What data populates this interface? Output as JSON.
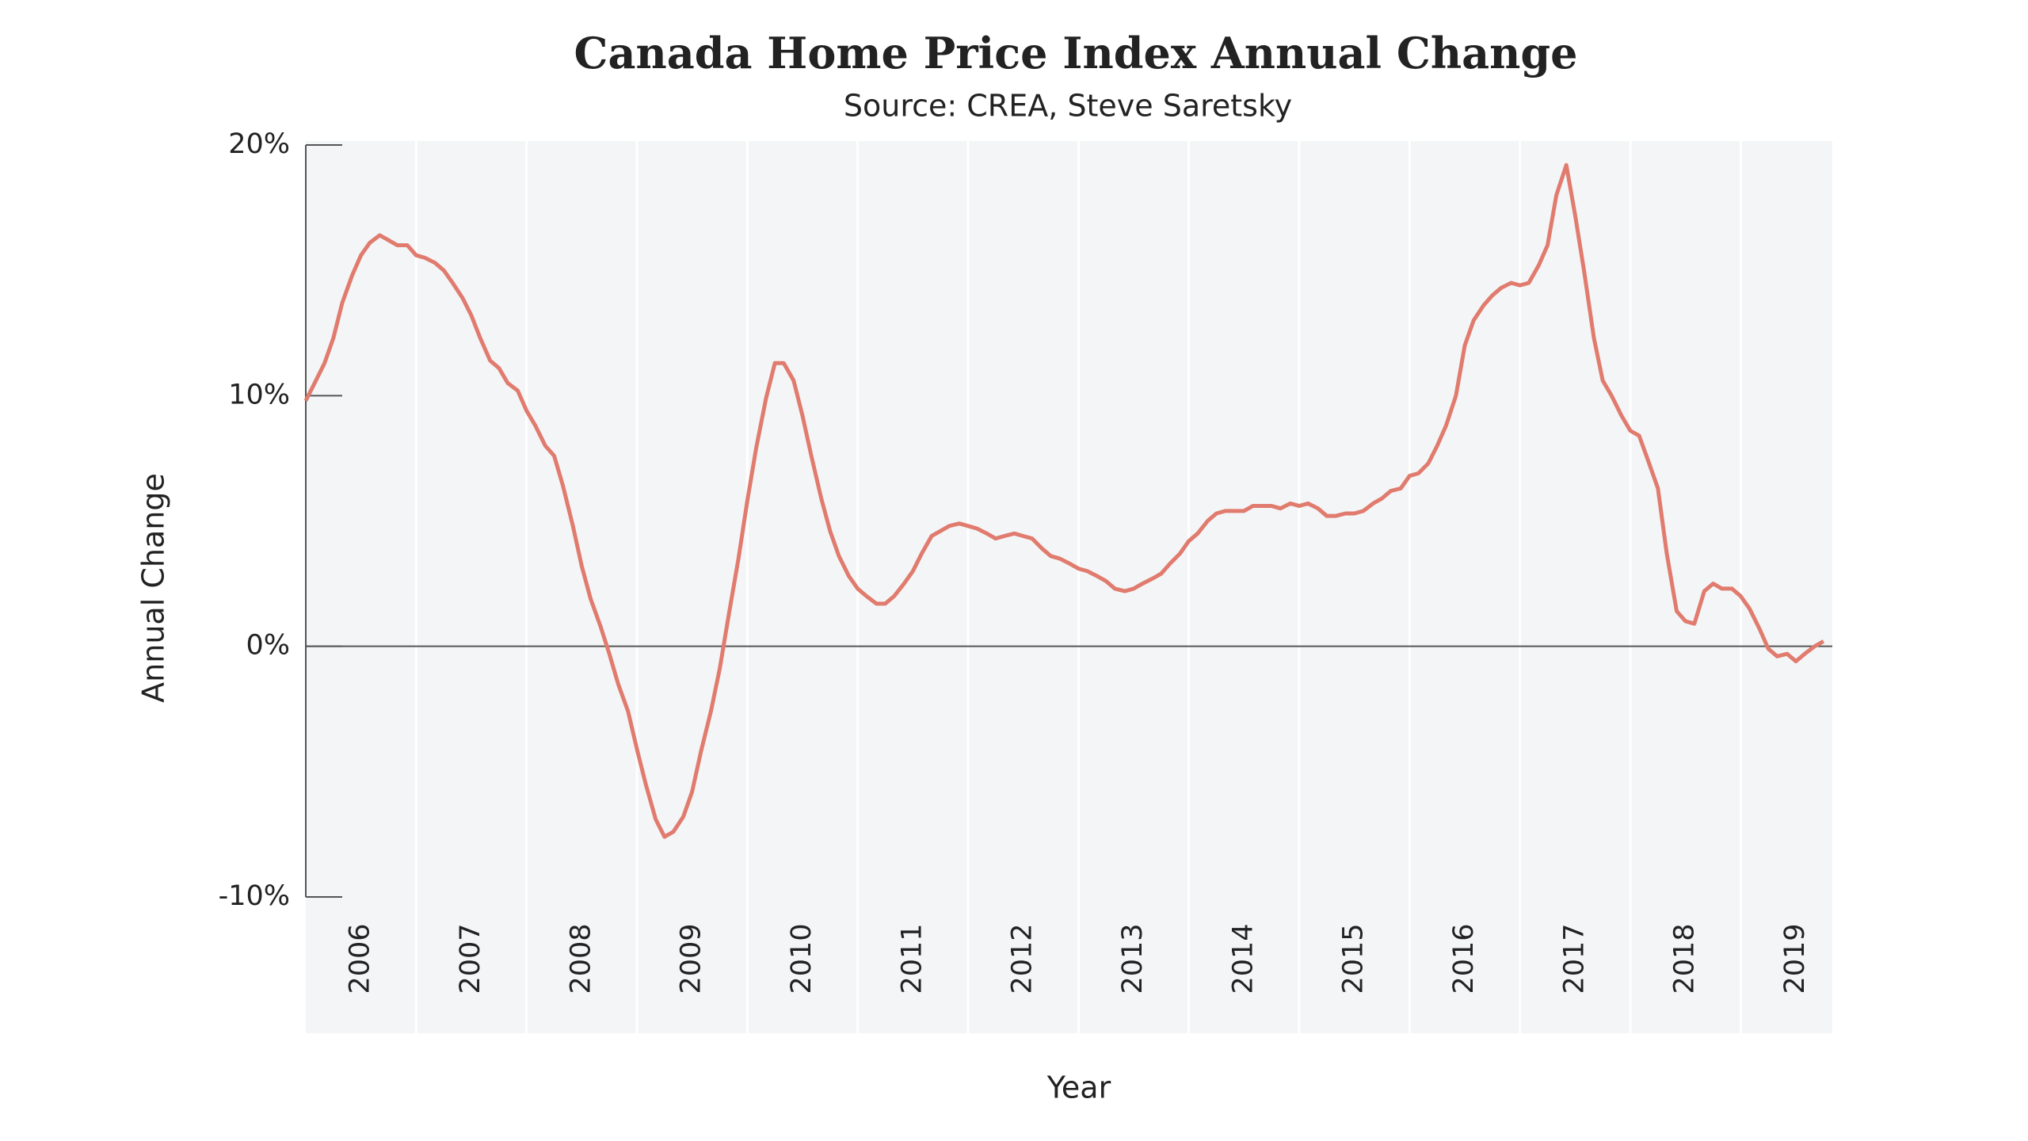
{
  "chart_data": {
    "type": "line",
    "title": "Canada Home Price Index Annual Change",
    "subtitle": "Source: CREA, Steve Saretsky",
    "xlabel": "Year",
    "ylabel": "Annual Change",
    "x": [
      2006,
      2006.08,
      2006.17,
      2006.25,
      2006.33,
      2006.42,
      2006.5,
      2006.58,
      2006.67,
      2006.75,
      2006.83,
      2006.92,
      2007,
      2007.08,
      2007.17,
      2007.25,
      2007.33,
      2007.42,
      2007.5,
      2007.58,
      2007.67,
      2007.75,
      2007.83,
      2007.92,
      2008,
      2008.08,
      2008.17,
      2008.25,
      2008.33,
      2008.42,
      2008.5,
      2008.58,
      2008.67,
      2008.75,
      2008.83,
      2008.92,
      2009,
      2009.08,
      2009.17,
      2009.25,
      2009.33,
      2009.42,
      2009.5,
      2009.58,
      2009.67,
      2009.75,
      2009.83,
      2009.92,
      2010,
      2010.08,
      2010.17,
      2010.25,
      2010.33,
      2010.42,
      2010.5,
      2010.58,
      2010.67,
      2010.75,
      2010.83,
      2010.92,
      2011,
      2011.08,
      2011.17,
      2011.25,
      2011.33,
      2011.42,
      2011.5,
      2011.58,
      2011.67,
      2011.75,
      2011.83,
      2011.92,
      2012,
      2012.08,
      2012.17,
      2012.25,
      2012.33,
      2012.42,
      2012.5,
      2012.58,
      2012.67,
      2012.75,
      2012.83,
      2012.92,
      2013,
      2013.08,
      2013.17,
      2013.25,
      2013.33,
      2013.42,
      2013.5,
      2013.58,
      2013.67,
      2013.75,
      2013.83,
      2013.92,
      2014,
      2014.08,
      2014.17,
      2014.25,
      2014.33,
      2014.42,
      2014.5,
      2014.58,
      2014.67,
      2014.75,
      2014.83,
      2014.92,
      2015,
      2015.08,
      2015.17,
      2015.25,
      2015.33,
      2015.42,
      2015.5,
      2015.58,
      2015.67,
      2015.75,
      2015.83,
      2015.92,
      2016,
      2016.08,
      2016.17,
      2016.25,
      2016.33,
      2016.42,
      2016.5,
      2016.58,
      2016.67,
      2016.75,
      2016.83,
      2016.92,
      2017,
      2017.08,
      2017.17,
      2017.25,
      2017.33,
      2017.42,
      2017.5,
      2017.58,
      2017.67,
      2017.75,
      2017.83,
      2017.92,
      2018,
      2018.08,
      2018.17,
      2018.25,
      2018.33,
      2018.42,
      2018.5,
      2018.58,
      2018.67,
      2018.75,
      2018.83,
      2018.92,
      2019,
      2019.08,
      2019.17,
      2019.25,
      2019.33,
      2019.42,
      2019.5,
      2019.58,
      2019.67,
      2019.75
    ],
    "series": [
      {
        "name": "Annual Change",
        "color": "#e07b6e",
        "values": [
          9.8,
          10.5,
          11.3,
          12.3,
          13.7,
          14.8,
          15.6,
          16.1,
          16.4,
          16.2,
          16.0,
          16.0,
          15.6,
          15.5,
          15.3,
          15.0,
          14.5,
          13.9,
          13.2,
          12.3,
          11.4,
          11.1,
          10.5,
          10.2,
          9.4,
          8.8,
          8.0,
          7.6,
          6.4,
          4.8,
          3.2,
          1.9,
          0.8,
          -0.3,
          -1.5,
          -2.6,
          -4.1,
          -5.5,
          -6.9,
          -7.6,
          -7.4,
          -6.8,
          -5.8,
          -4.2,
          -2.6,
          -0.9,
          1.2,
          3.5,
          5.8,
          7.9,
          9.9,
          11.3,
          11.3,
          10.6,
          9.2,
          7.6,
          5.9,
          4.6,
          3.6,
          2.8,
          2.3,
          2.0,
          1.7,
          1.7,
          2.0,
          2.5,
          3.0,
          3.7,
          4.4,
          4.6,
          4.8,
          4.9,
          4.8,
          4.7,
          4.5,
          4.3,
          4.4,
          4.5,
          4.4,
          4.3,
          3.9,
          3.6,
          3.5,
          3.3,
          3.1,
          3.0,
          2.8,
          2.6,
          2.3,
          2.2,
          2.3,
          2.5,
          2.7,
          2.9,
          3.3,
          3.7,
          4.2,
          4.5,
          5.0,
          5.3,
          5.4,
          5.4,
          5.4,
          5.6,
          5.6,
          5.6,
          5.5,
          5.7,
          5.6,
          5.7,
          5.5,
          5.2,
          5.2,
          5.3,
          5.3,
          5.4,
          5.7,
          5.9,
          6.2,
          6.3,
          6.8,
          6.9,
          7.3,
          8.0,
          8.8,
          10.0,
          12.0,
          13.0,
          13.6,
          14.0,
          14.3,
          14.5,
          14.4,
          14.5,
          15.2,
          16.0,
          18.0,
          19.2,
          17.2,
          15.0,
          12.3,
          10.6,
          10.0,
          9.2,
          8.6,
          8.4,
          7.3,
          6.3,
          3.7,
          1.4,
          1.0,
          0.9,
          2.2,
          2.5,
          2.3,
          2.3,
          2.0,
          1.5,
          0.7,
          -0.1,
          -0.4,
          -0.3,
          -0.6,
          -0.3,
          0.0,
          0.2
        ]
      }
    ],
    "xlim": [
      2006,
      2019.83
    ],
    "xticks": [
      2006,
      2007,
      2008,
      2009,
      2010,
      2011,
      2012,
      2013,
      2014,
      2015,
      2016,
      2017,
      2018,
      2019
    ],
    "ylim": [
      -10,
      20
    ],
    "yticks": [
      {
        "value": -10,
        "label": "-10%"
      },
      {
        "value": 0,
        "label": "0%"
      },
      {
        "value": 10,
        "label": "10%"
      },
      {
        "value": 20,
        "label": "20%"
      }
    ],
    "zero_line": true,
    "grid": true
  }
}
